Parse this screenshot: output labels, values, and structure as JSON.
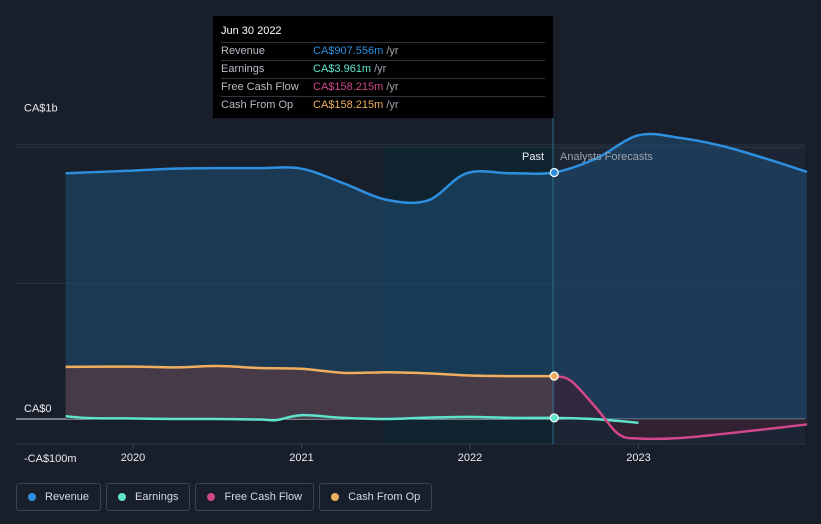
{
  "tooltip": {
    "date": "Jun 30 2022",
    "rows": [
      {
        "label": "Revenue",
        "value": "CA$907.556m",
        "unit": "/yr",
        "color": "#2d8fde"
      },
      {
        "label": "Earnings",
        "value": "CA$3.961m",
        "unit": "/yr",
        "color": "#5ee4cd"
      },
      {
        "label": "Free Cash Flow",
        "value": "CA$158.215m",
        "unit": "/yr",
        "color": "#d0478a"
      },
      {
        "label": "Cash From Op",
        "value": "CA$158.215m",
        "unit": "/yr",
        "color": "#eeae5e"
      }
    ]
  },
  "labels": {
    "past": "Past",
    "forecast": "Analysts Forecasts"
  },
  "legend": [
    {
      "label": "Revenue",
      "color": "#2d8fde"
    },
    {
      "label": "Earnings",
      "color": "#5ee4cd"
    },
    {
      "label": "Free Cash Flow",
      "color": "#d0478a"
    },
    {
      "label": "Cash From Op",
      "color": "#eeae5e"
    }
  ],
  "chart_data": {
    "type": "line",
    "ytick_labels": [
      "CA$1b",
      "CA$0",
      "-CA$100m"
    ],
    "xtick_labels": [
      "2020",
      "2021",
      "2022",
      "2023"
    ],
    "ylim": [
      -100,
      1000
    ],
    "unit": "CA$m",
    "highlight_date": 2022.5,
    "grid": true,
    "legend_position": "bottom-left",
    "series": [
      {
        "name": "Revenue",
        "color": "#2d8fde",
        "x": [
          2019.6,
          2020.0,
          2020.25,
          2020.5,
          2020.75,
          2021.0,
          2021.25,
          2021.5,
          2021.75,
          2021.98,
          2022.25,
          2022.5,
          2022.75,
          2023.0,
          2023.25,
          2023.5,
          2023.75,
          2024.0
        ],
        "values": [
          905,
          915,
          922,
          924,
          924,
          922,
          868,
          808,
          805,
          905,
          905,
          908,
          960,
          1045,
          1035,
          1005,
          960,
          910
        ]
      },
      {
        "name": "Earnings",
        "color": "#5ee4cd",
        "x": [
          2019.6,
          2019.75,
          2020.0,
          2020.25,
          2020.5,
          2020.75,
          2020.85,
          2021.0,
          2021.25,
          2021.5,
          2021.75,
          2022.0,
          2022.25,
          2022.5,
          2022.75,
          2023.0
        ],
        "values": [
          10,
          3,
          2,
          0,
          0,
          -2,
          -4,
          14,
          4,
          0,
          5,
          8,
          4,
          4,
          -1,
          -14
        ]
      },
      {
        "name": "Free Cash Flow",
        "color": "#d0478a",
        "x": [
          2022.5,
          2022.6,
          2022.75,
          2022.88,
          2023.0,
          2023.25,
          2023.5,
          2023.75,
          2024.0
        ],
        "values": [
          158,
          140,
          40,
          -55,
          -72,
          -70,
          -55,
          -38,
          -20
        ]
      },
      {
        "name": "Cash From Op",
        "color": "#eeae5e",
        "x": [
          2019.6,
          2020.0,
          2020.25,
          2020.5,
          2020.75,
          2021.0,
          2021.25,
          2021.5,
          2021.75,
          2022.0,
          2022.25,
          2022.5
        ],
        "values": [
          192,
          193,
          190,
          195,
          188,
          185,
          170,
          172,
          168,
          160,
          158,
          158
        ]
      }
    ]
  }
}
